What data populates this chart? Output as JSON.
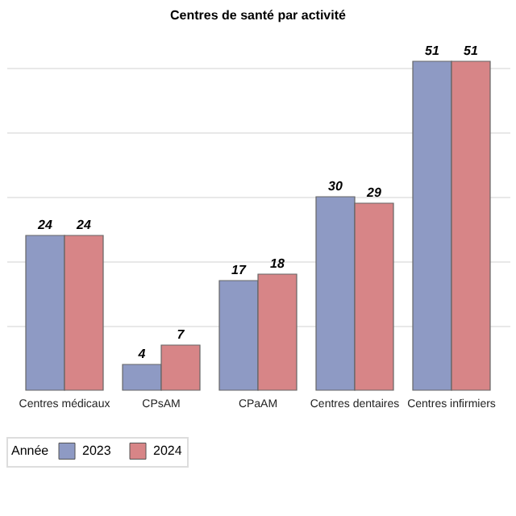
{
  "chart_data": {
    "type": "bar",
    "title": "Centres de santé par activité",
    "legend_title": "Année",
    "categories": [
      "Centres médicaux",
      "CPsAM",
      "CPaAM",
      "Centres dentaires",
      "Centres infirmiers"
    ],
    "series": [
      {
        "name": "2023",
        "color": "#8e9ac4",
        "values": [
          24,
          4,
          17,
          30,
          51
        ]
      },
      {
        "name": "2024",
        "color": "#d78587",
        "values": [
          24,
          7,
          18,
          29,
          51
        ]
      }
    ],
    "yticks": [
      {
        "value": 10,
        "label": null
      },
      {
        "value": 20,
        "label": null
      },
      {
        "value": 30,
        "label": null
      },
      {
        "value": 40,
        "label": null
      },
      {
        "value": 50,
        "label": null
      }
    ],
    "grid": "y",
    "tick_labels": "x",
    "data_labels": true,
    "legend": "bottom"
  }
}
